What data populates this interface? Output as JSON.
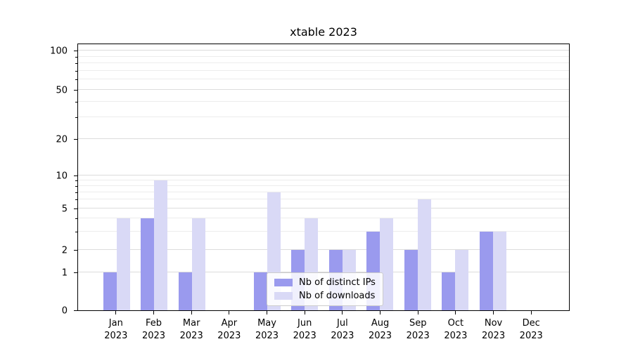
{
  "title": "xtable 2023",
  "chart_data": {
    "type": "bar",
    "title": "xtable 2023",
    "xlabel": "",
    "ylabel": "",
    "categories": [
      "Jan 2023",
      "Feb 2023",
      "Mar 2023",
      "Apr 2023",
      "May 2023",
      "Jun 2023",
      "Jul 2023",
      "Aug 2023",
      "Sep 2023",
      "Oct 2023",
      "Nov 2023",
      "Dec 2023"
    ],
    "series": [
      {
        "name": "Nb of distinct IPs",
        "color": "#9a9aee",
        "values": [
          1,
          4,
          1,
          0,
          1,
          2,
          2,
          3,
          2,
          1,
          3,
          0
        ]
      },
      {
        "name": "Nb of downloads",
        "color": "#d9d9f6",
        "values": [
          4,
          9,
          4,
          0,
          7,
          4,
          2,
          4,
          6,
          2,
          3,
          0
        ]
      }
    ],
    "y_axis": {
      "scale": "log-like with zero baseline",
      "ticks": [
        0,
        1,
        2,
        5,
        10,
        20,
        50,
        100
      ],
      "minor_ticks": [
        3,
        4,
        6,
        7,
        8,
        9,
        30,
        40,
        60,
        70,
        80,
        90
      ],
      "ylim": [
        0,
        100
      ]
    },
    "grid": true,
    "legend": {
      "position": "lower center",
      "entries": [
        "Nb of distinct IPs",
        "Nb of downloads"
      ]
    }
  }
}
